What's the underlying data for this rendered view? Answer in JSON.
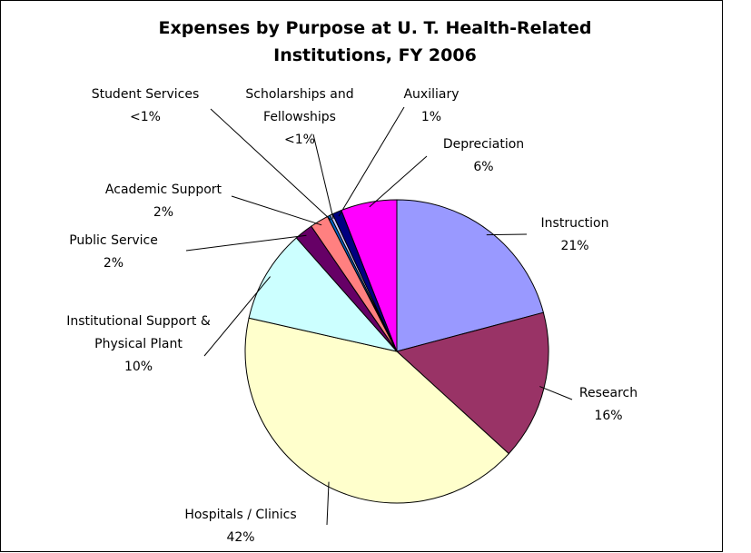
{
  "chart_data": {
    "type": "pie",
    "title": "Expenses by Purpose at U. T. Health-Related Institutions, FY 2006",
    "categories": [
      "Instruction",
      "Research",
      "Hospitals / Clinics",
      "Institutional Support & Physical Plant",
      "Public Service",
      "Academic Support",
      "Student Services",
      "Scholarships and Fellowships",
      "Auxiliary",
      "Depreciation"
    ],
    "values": [
      21,
      16,
      42,
      10,
      2,
      2,
      0.3,
      0.3,
      1,
      6
    ],
    "value_labels": [
      "21%",
      "16%",
      "42%",
      "10%",
      "2%",
      "2%",
      "<1%",
      "<1%",
      "1%",
      "6%"
    ],
    "colors": [
      "#9999ff",
      "#993366",
      "#ffffcc",
      "#ccffff",
      "#660066",
      "#ff8080",
      "#0066cc",
      "#ccccff",
      "#000080",
      "#ff00ff"
    ]
  }
}
